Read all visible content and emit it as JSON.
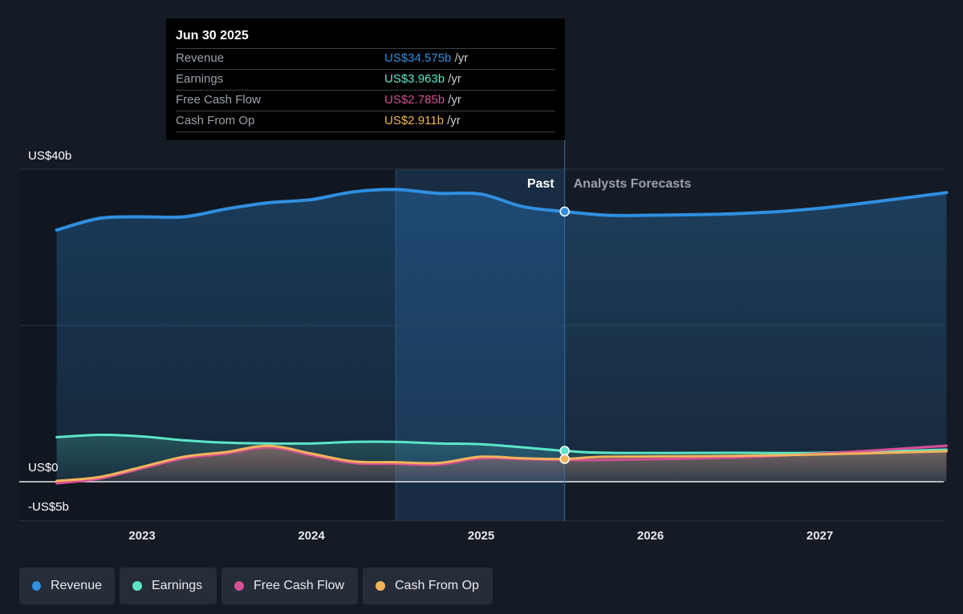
{
  "tooltip": {
    "date": "Jun 30 2025",
    "rows": [
      {
        "label": "Revenue",
        "value": "US$34.575b",
        "unit": "/yr",
        "color": "#2f8fe0"
      },
      {
        "label": "Earnings",
        "value": "US$3.963b",
        "unit": "/yr",
        "color": "#5ce6c8"
      },
      {
        "label": "Free Cash Flow",
        "value": "US$2.785b",
        "unit": "/yr",
        "color": "#d64f94"
      },
      {
        "label": "Cash From Op",
        "value": "US$2.911b",
        "unit": "/yr",
        "color": "#f2b45a"
      }
    ]
  },
  "chart_data": {
    "type": "area",
    "y_unit": "US$ billions",
    "ylim": [
      -5,
      40
    ],
    "y_tick_labels": [
      {
        "value": 40,
        "label": "US$40b"
      },
      {
        "value": 0,
        "label": "US$0"
      },
      {
        "value": -5,
        "label": "-US$5b"
      }
    ],
    "xlim": [
      "2022-07-01",
      "2027-10-01"
    ],
    "x_tick_labels": [
      "2023",
      "2024",
      "2025",
      "2026",
      "2027"
    ],
    "x_tick_values": [
      "2023-01-01",
      "2024-01-01",
      "2025-01-01",
      "2026-01-01",
      "2027-01-01"
    ],
    "past_label": "Past",
    "forecast_label": "Analysts Forecasts",
    "divider_date": "2025-06-30",
    "highlight_start": "2024-07-01",
    "grid": true,
    "legend_position": "bottom-left",
    "series": [
      {
        "name": "Revenue",
        "color": "#2f8fe0",
        "points": [
          [
            "2022-07-01",
            32.2
          ],
          [
            "2022-10-01",
            33.7
          ],
          [
            "2023-01-01",
            33.9
          ],
          [
            "2023-04-01",
            33.9
          ],
          [
            "2023-07-01",
            34.9
          ],
          [
            "2023-10-01",
            35.7
          ],
          [
            "2024-01-01",
            36.1
          ],
          [
            "2024-04-01",
            37.1
          ],
          [
            "2024-07-01",
            37.4
          ],
          [
            "2024-10-01",
            36.9
          ],
          [
            "2025-01-01",
            36.8
          ],
          [
            "2025-04-01",
            35.2
          ],
          [
            "2025-06-30",
            34.575
          ],
          [
            "2025-10-01",
            34.1
          ],
          [
            "2026-01-01",
            34.1
          ],
          [
            "2026-07-01",
            34.3
          ],
          [
            "2027-01-01",
            35.0
          ],
          [
            "2027-10-01",
            37.0
          ]
        ]
      },
      {
        "name": "Earnings",
        "color": "#5ce6c8",
        "points": [
          [
            "2022-07-01",
            5.7
          ],
          [
            "2022-10-01",
            6.0
          ],
          [
            "2023-01-01",
            5.8
          ],
          [
            "2023-04-01",
            5.3
          ],
          [
            "2023-07-01",
            5.0
          ],
          [
            "2023-10-01",
            4.9
          ],
          [
            "2024-01-01",
            4.9
          ],
          [
            "2024-04-01",
            5.1
          ],
          [
            "2024-07-01",
            5.1
          ],
          [
            "2024-10-01",
            4.9
          ],
          [
            "2025-01-01",
            4.8
          ],
          [
            "2025-04-01",
            4.4
          ],
          [
            "2025-06-30",
            3.963
          ],
          [
            "2025-10-01",
            3.7
          ],
          [
            "2026-07-01",
            3.7
          ],
          [
            "2027-01-01",
            3.7
          ],
          [
            "2027-10-01",
            4.1
          ]
        ]
      },
      {
        "name": "Free Cash Flow",
        "color": "#d64f94",
        "points": [
          [
            "2022-07-01",
            -0.2
          ],
          [
            "2022-10-01",
            0.4
          ],
          [
            "2023-01-01",
            1.7
          ],
          [
            "2023-04-01",
            3.0
          ],
          [
            "2023-07-01",
            3.6
          ],
          [
            "2023-10-01",
            4.4
          ],
          [
            "2024-01-01",
            3.4
          ],
          [
            "2024-04-01",
            2.4
          ],
          [
            "2024-07-01",
            2.3
          ],
          [
            "2024-10-01",
            2.2
          ],
          [
            "2025-01-01",
            3.0
          ],
          [
            "2025-04-01",
            2.9
          ],
          [
            "2025-06-30",
            2.785
          ],
          [
            "2025-10-01",
            2.8
          ],
          [
            "2026-07-01",
            3.1
          ],
          [
            "2027-01-01",
            3.6
          ],
          [
            "2027-10-01",
            4.6
          ]
        ]
      },
      {
        "name": "Cash From Op",
        "color": "#f2b45a",
        "points": [
          [
            "2022-07-01",
            0.1
          ],
          [
            "2022-10-01",
            0.6
          ],
          [
            "2023-01-01",
            1.9
          ],
          [
            "2023-04-01",
            3.2
          ],
          [
            "2023-07-01",
            3.8
          ],
          [
            "2023-10-01",
            4.6
          ],
          [
            "2024-01-01",
            3.6
          ],
          [
            "2024-04-01",
            2.6
          ],
          [
            "2024-07-01",
            2.5
          ],
          [
            "2024-10-01",
            2.4
          ],
          [
            "2025-01-01",
            3.2
          ],
          [
            "2025-04-01",
            3.0
          ],
          [
            "2025-06-30",
            2.911
          ],
          [
            "2025-10-01",
            3.2
          ],
          [
            "2026-07-01",
            3.3
          ],
          [
            "2027-01-01",
            3.5
          ],
          [
            "2027-10-01",
            3.9
          ]
        ]
      }
    ]
  }
}
